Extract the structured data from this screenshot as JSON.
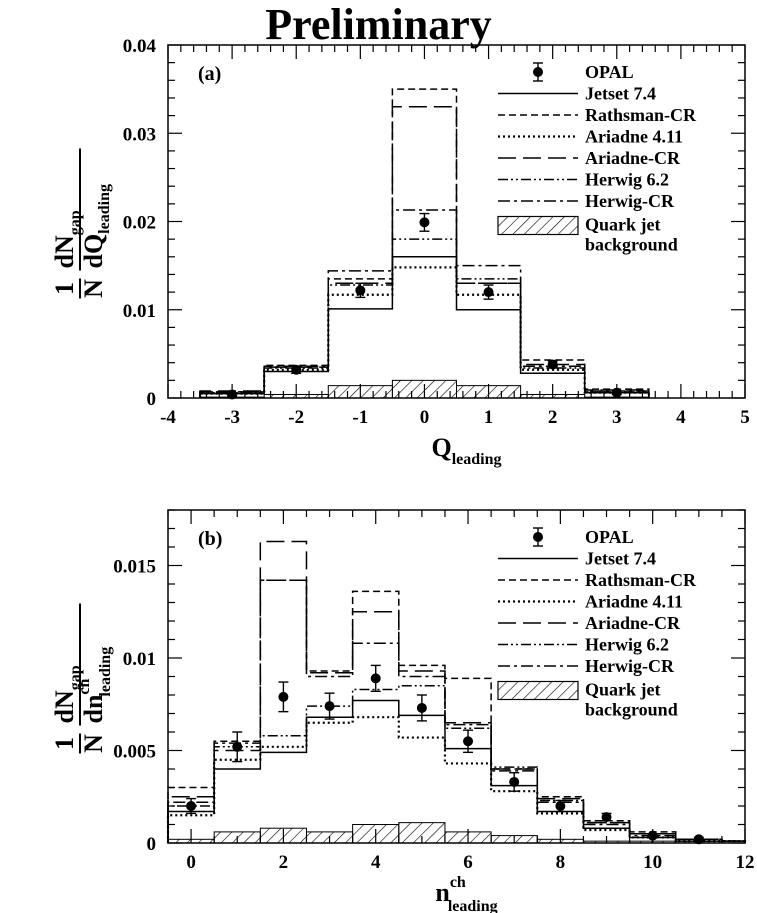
{
  "title": "Preliminary",
  "chart_data": [
    {
      "type": "line",
      "panel_label": "(a)",
      "xlabel": {
        "main": "Q",
        "sub": "leading"
      },
      "ylabel": {
        "prefix": "1",
        "num_main": "dN",
        "num_sub": "gap",
        "den_main": "N dQ",
        "den_sub": "leading"
      },
      "xlim": [
        -4,
        5
      ],
      "ylim": [
        0,
        0.04
      ],
      "xticks": [
        -4,
        -3,
        -2,
        -1,
        0,
        1,
        2,
        3,
        4,
        5
      ],
      "yticks": [
        0,
        0.01,
        0.02,
        0.03,
        0.04
      ],
      "ytick_labels": [
        "0",
        "0.01",
        "0.02",
        "0.03",
        "0.04"
      ],
      "bin_edges": [
        -3.5,
        -2.5,
        -1.5,
        -0.5,
        0.5,
        1.5,
        2.5,
        3.5
      ],
      "legend": {
        "position": "top-right",
        "entries": [
          "OPAL",
          "Jetset 7.4",
          "Rathsman-CR",
          "Ariadne 4.11",
          "Ariadne-CR",
          "Herwig 6.2",
          "Herwig-CR"
        ],
        "background_label": [
          "Quark jet",
          "background"
        ]
      },
      "data_points": {
        "name": "OPAL",
        "x": [
          -3,
          -2,
          -1,
          0,
          1,
          2,
          3
        ],
        "y": [
          0.0004,
          0.0032,
          0.0122,
          0.0199,
          0.012,
          0.0038,
          0.0006
        ],
        "err": [
          0.0002,
          0.0004,
          0.0008,
          0.001,
          0.0008,
          0.0004,
          0.0002
        ]
      },
      "series": [
        {
          "name": "Jetset 7.4",
          "style": "solid",
          "values": [
            0.0005,
            0.003,
            0.0101,
            0.016,
            0.01,
            0.0028,
            0.0006
          ]
        },
        {
          "name": "Rathsman-CR",
          "style": "dashed",
          "values": [
            0.0007,
            0.0037,
            0.0135,
            0.035,
            0.013,
            0.0043,
            0.001
          ]
        },
        {
          "name": "Ariadne 4.11",
          "style": "dotted",
          "values": [
            0.0005,
            0.0032,
            0.0117,
            0.0148,
            0.0117,
            0.0032,
            0.0006
          ]
        },
        {
          "name": "Ariadne-CR",
          "style": "longdash",
          "values": [
            0.0008,
            0.0035,
            0.013,
            0.033,
            0.013,
            0.0038,
            0.0009
          ]
        },
        {
          "name": "Herwig 6.2",
          "style": "dashdotdot",
          "values": [
            0.0006,
            0.0034,
            0.0128,
            0.018,
            0.0135,
            0.0034,
            0.0007
          ]
        },
        {
          "name": "Herwig-CR",
          "style": "dashdot",
          "values": [
            0.0007,
            0.0036,
            0.0144,
            0.0213,
            0.015,
            0.0036,
            0.0008
          ]
        }
      ],
      "background": {
        "name": "Quark jet background",
        "values": [
          0.0001,
          0.0004,
          0.0014,
          0.002,
          0.0014,
          0.0004,
          0.0001
        ]
      }
    },
    {
      "type": "line",
      "panel_label": "(b)",
      "xlabel": {
        "main": "n",
        "sup": "ch",
        "sub": "leading"
      },
      "ylabel": {
        "prefix": "1",
        "num_main": "dN",
        "num_sub": "gap",
        "den_main": "N dn",
        "den_sup": "ch",
        "den_sub": "leading"
      },
      "xlim": [
        -0.5,
        12
      ],
      "ylim": [
        0,
        0.018
      ],
      "xticks": [
        0,
        2,
        4,
        6,
        8,
        10,
        12
      ],
      "yticks": [
        0,
        0.005,
        0.01,
        0.015
      ],
      "ytick_labels": [
        "0",
        "0.005",
        "0.01",
        "0.015"
      ],
      "bin_edges": [
        -0.5,
        0.5,
        1.5,
        2.5,
        3.5,
        4.5,
        5.5,
        6.5,
        7.5,
        8.5,
        9.5,
        10.5,
        11.5,
        12
      ],
      "legend": {
        "position": "top-right",
        "entries": [
          "OPAL",
          "Jetset 7.4",
          "Rathsman-CR",
          "Ariadne 4.11",
          "Ariadne-CR",
          "Herwig 6.2",
          "Herwig-CR"
        ],
        "background_label": [
          "Quark jet",
          "background"
        ]
      },
      "data_points": {
        "name": "OPAL",
        "x": [
          0,
          1,
          2,
          3,
          4,
          5,
          6,
          7,
          8,
          9,
          10,
          11
        ],
        "y": [
          0.002,
          0.0052,
          0.0079,
          0.0074,
          0.0089,
          0.0073,
          0.0055,
          0.0033,
          0.002,
          0.0014,
          0.0004,
          0.0002
        ],
        "err": [
          0.0004,
          0.0008,
          0.0008,
          0.0007,
          0.0007,
          0.0007,
          0.0006,
          0.0005,
          0.0003,
          0.0002,
          0.0001,
          0.0001
        ]
      },
      "series": [
        {
          "name": "Jetset 7.4",
          "style": "solid",
          "values": [
            0.0017,
            0.004,
            0.0049,
            0.0068,
            0.0077,
            0.0069,
            0.0051,
            0.0031,
            0.0017,
            0.0008,
            0.0003,
            0.0001,
            0.0001
          ]
        },
        {
          "name": "Rathsman-CR",
          "style": "dashed",
          "values": [
            0.003,
            0.0055,
            0.0142,
            0.0093,
            0.0136,
            0.0096,
            0.0089,
            0.004,
            0.0025,
            0.0012,
            0.0006,
            0.0002,
            0.0001
          ]
        },
        {
          "name": "Ariadne 4.11",
          "style": "dotted",
          "values": [
            0.0015,
            0.0045,
            0.0052,
            0.0065,
            0.0068,
            0.0057,
            0.0043,
            0.0028,
            0.0016,
            0.0007,
            0.0003,
            0.0001,
            0.0001
          ]
        },
        {
          "name": "Ariadne-CR",
          "style": "longdash",
          "values": [
            0.0025,
            0.005,
            0.0163,
            0.0092,
            0.0125,
            0.0093,
            0.0065,
            0.004,
            0.0024,
            0.0011,
            0.0005,
            0.0002,
            0.0001
          ]
        },
        {
          "name": "Herwig 6.2",
          "style": "dashdotdot",
          "values": [
            0.002,
            0.0052,
            0.0058,
            0.0074,
            0.0083,
            0.0085,
            0.0062,
            0.0041,
            0.0023,
            0.0011,
            0.0005,
            0.0002,
            0.0001
          ]
        },
        {
          "name": "Herwig-CR",
          "style": "dashdot",
          "values": [
            0.0022,
            0.0054,
            0.0142,
            0.009,
            0.0108,
            0.009,
            0.0064,
            0.0039,
            0.0022,
            0.001,
            0.0004,
            0.0002,
            0.0001
          ]
        }
      ],
      "background": {
        "name": "Quark jet background",
        "values": [
          0.0002,
          0.0006,
          0.0008,
          0.0006,
          0.001,
          0.0011,
          0.0006,
          0.0004,
          0.0002,
          0.0001,
          0.0001,
          0.0001,
          0.0
        ]
      }
    }
  ]
}
